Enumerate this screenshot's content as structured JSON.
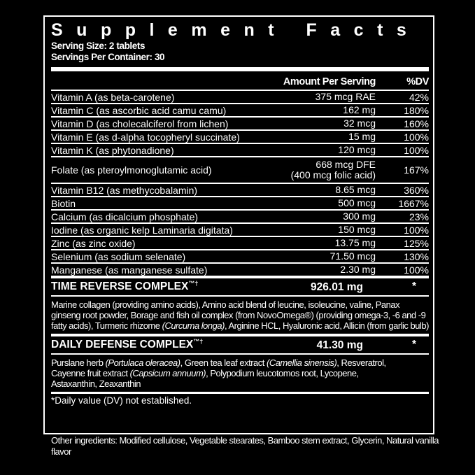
{
  "title": "Supplement Facts",
  "serving_size": "Serving Size: 2 tablets",
  "servings_per_container": "Servings Per Container: 30",
  "header": {
    "amount": "Amount Per Serving",
    "dv": "%DV"
  },
  "nutrients": [
    {
      "name": "Vitamin A (as beta-carotene)",
      "amount": "375 mcg RAE",
      "dv": "42%"
    },
    {
      "name": "Vitamin C (as ascorbic acid camu camu)",
      "amount": "162 mg",
      "dv": "180%"
    },
    {
      "name": "Vitamin D (as cholecalciferol from lichen)",
      "amount": "32 mcg",
      "dv": "160%"
    },
    {
      "name": "Vitamin E (as d-alpha tocopheryl succinate)",
      "amount": "15 mg",
      "dv": "100%"
    },
    {
      "name": "Vitamin K (as phytonadione)",
      "amount": "120 mcg",
      "dv": "100%"
    },
    {
      "name": "Folate (as pteroylmonoglutamic acid)",
      "amount": "668 mcg DFE",
      "amount2": "(400 mcg folic acid)",
      "dv": "167%"
    },
    {
      "name": "Vitamin B12 (as methycobalamin)",
      "amount": "8.65 mcg",
      "dv": "360%"
    },
    {
      "name": "Biotin",
      "amount": "500 mcg",
      "dv": "1667%"
    },
    {
      "name": "Calcium (as dicalcium phosphate)",
      "amount": "300 mg",
      "dv": "23%"
    },
    {
      "name": "Iodine (as organic kelp Laminaria digitata)",
      "amount": "150 mcg",
      "dv": "100%"
    },
    {
      "name": "Zinc (as zinc oxide)",
      "amount": "13.75 mg",
      "dv": "125%"
    },
    {
      "name": "Selenium (as sodium selenate)",
      "amount": "71.50 mcg",
      "dv": "130%"
    },
    {
      "name": "Manganese (as manganese sulfate)",
      "amount": "2.30 mg",
      "dv": "100%"
    }
  ],
  "time_reverse": {
    "name": "TIME REVERSE COMPLEX",
    "mark": "™†",
    "amount": "926.01 mg",
    "dv": "*",
    "desc_a": "Marine collagen (providing amino acids), Amino acid blend of leucine, isoleucine, valine, Panax ginseng root powder, Borage and fish oil complex (from NovoOmega®) (providing omega-3, -6 and -9 fatty acids), Turmeric rhizome ",
    "desc_i1": "(Curcuma longa)",
    "desc_b": ", Arginine HCL, Hyaluronic acid, Allicin (from garlic bulb)"
  },
  "daily_defense": {
    "name": "DAILY DEFENSE COMPLEX",
    "mark": "™†",
    "amount": "41.30 mg",
    "dv": "*",
    "desc_a": "Purslane herb ",
    "desc_i1": "(Portulaca oleracea)",
    "desc_b": ", Green tea leaf extract ",
    "desc_i2": "(Camellia sinensis)",
    "desc_c": ", Resveratrol, Cayenne fruit extract ",
    "desc_i3": "(Capsicum annuum)",
    "desc_d": ", Polypodium leucotomos root, Lycopene, Astaxanthin, Zeaxanthin"
  },
  "footnote": "*Daily value (DV) not established.",
  "other_ingredients": "Other ingredients: Modified cellulose, Vegetable stearates, Bamboo stem extract, Glycerin, Natural vanilla flavor"
}
